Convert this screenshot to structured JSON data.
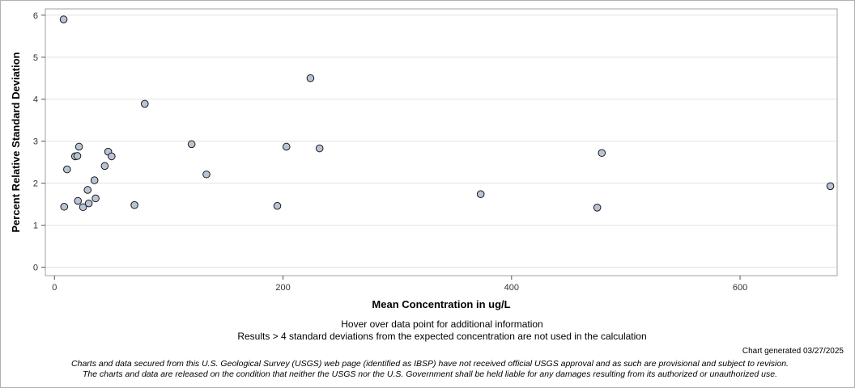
{
  "chart_data": {
    "type": "scatter",
    "xlabel": "Mean Concentration in ug/L",
    "ylabel": "Percent Relative Standard Deviation",
    "xlim": [
      -8,
      685
    ],
    "ylim": [
      -0.2,
      6.15
    ],
    "xticks": [
      0,
      200,
      400,
      600
    ],
    "yticks": [
      0,
      1,
      2,
      3,
      4,
      5,
      6
    ],
    "grid": "horizontal",
    "marker_color": "#b8c4d6",
    "points": [
      {
        "x": 8,
        "y": 5.9
      },
      {
        "x": 8.5,
        "y": 1.44
      },
      {
        "x": 11,
        "y": 2.33
      },
      {
        "x": 18,
        "y": 2.64
      },
      {
        "x": 20,
        "y": 2.65
      },
      {
        "x": 20.5,
        "y": 1.58
      },
      {
        "x": 21.5,
        "y": 2.87
      },
      {
        "x": 25,
        "y": 1.43
      },
      {
        "x": 29,
        "y": 1.84
      },
      {
        "x": 30,
        "y": 1.52
      },
      {
        "x": 35,
        "y": 2.07
      },
      {
        "x": 36,
        "y": 1.64
      },
      {
        "x": 44,
        "y": 2.41
      },
      {
        "x": 47,
        "y": 2.75
      },
      {
        "x": 50,
        "y": 2.64
      },
      {
        "x": 70,
        "y": 1.48
      },
      {
        "x": 79,
        "y": 3.89
      },
      {
        "x": 120,
        "y": 2.93
      },
      {
        "x": 133,
        "y": 2.21
      },
      {
        "x": 195,
        "y": 1.46
      },
      {
        "x": 203,
        "y": 2.87
      },
      {
        "x": 224,
        "y": 4.5
      },
      {
        "x": 232,
        "y": 2.83
      },
      {
        "x": 373,
        "y": 1.74
      },
      {
        "x": 475,
        "y": 1.42
      },
      {
        "x": 479,
        "y": 2.72
      },
      {
        "x": 679,
        "y": 1.93
      }
    ]
  },
  "notes": {
    "hover": "Hover over data point for additional information",
    "results": "Results > 4 standard deviations from the expected concentration are not used in the calculation",
    "generated": "Chart generated 03/27/2025"
  },
  "disclaimer": {
    "line1": "Charts and data secured from this U.S. Geological Survey (USGS) web page (identified as IBSP) have not received official USGS approval and as such are provisional and subject to revision.",
    "line2": "The charts and data are released on the condition that neither the USGS nor the U.S. Government shall be held liable for any damages resulting from its authorized or unauthorized use."
  }
}
